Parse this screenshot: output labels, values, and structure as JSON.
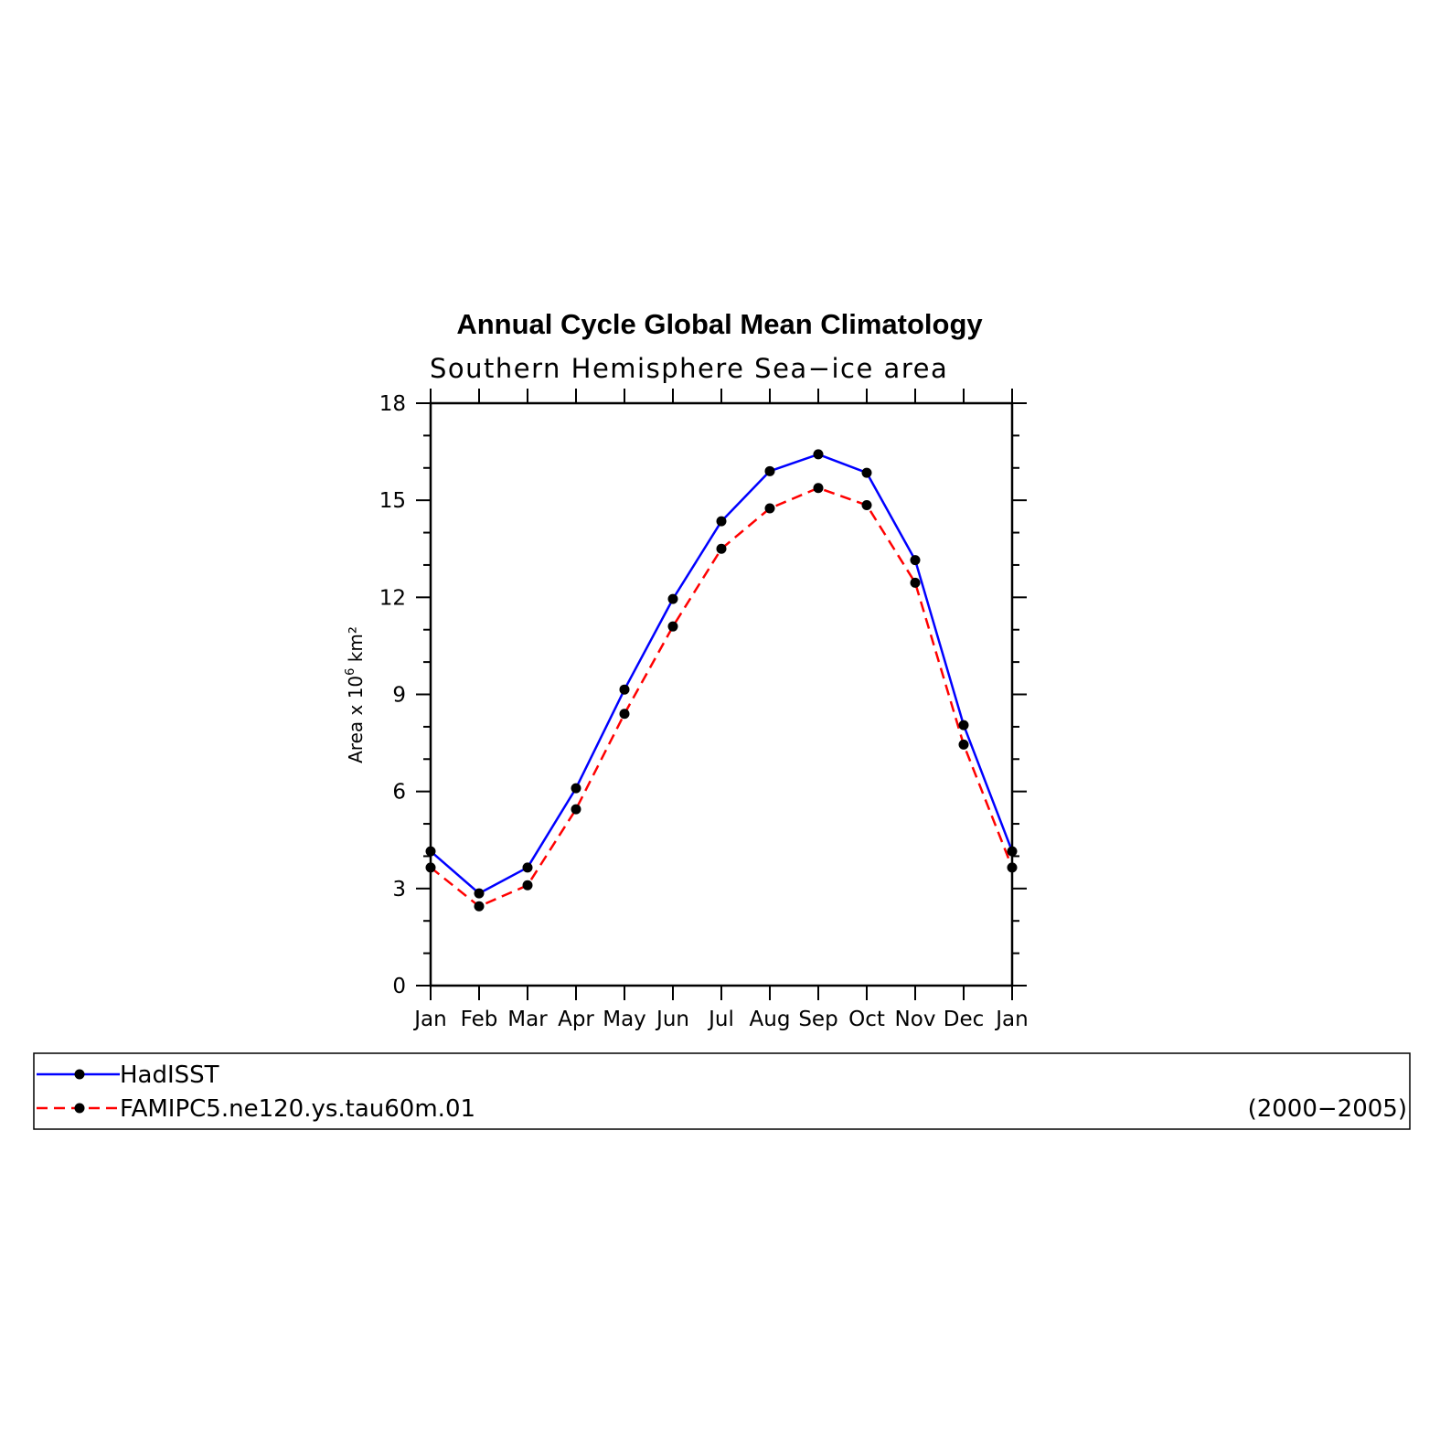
{
  "chart_data": {
    "type": "line",
    "title": "Annual Cycle Global Mean Climatology",
    "subtitle": "Southern Hemisphere Sea−ice area",
    "ylabel": {
      "prefix": "Area x 10",
      "exponent": "6",
      "unit": "km²"
    },
    "categories": [
      "Jan",
      "Feb",
      "Mar",
      "Apr",
      "May",
      "Jun",
      "Jul",
      "Aug",
      "Sep",
      "Oct",
      "Nov",
      "Dec",
      "Jan"
    ],
    "ylim": [
      0,
      18
    ],
    "yticks": [
      0,
      3,
      6,
      9,
      12,
      15,
      18
    ],
    "series": [
      {
        "name": "HadISST",
        "color": "#0000ff",
        "line_style": "solid",
        "marker": "filled-circle",
        "values": [
          4.15,
          2.85,
          3.65,
          6.1,
          9.15,
          11.95,
          14.35,
          15.9,
          16.42,
          15.85,
          13.15,
          8.05,
          4.15
        ]
      },
      {
        "name": "FAMIPC5.ne120.ys.tau60m.01",
        "color": "#ff0000",
        "line_style": "dashed",
        "marker": "filled-circle",
        "values": [
          3.65,
          2.45,
          3.1,
          5.45,
          8.4,
          11.1,
          13.5,
          14.75,
          15.38,
          14.85,
          12.45,
          7.45,
          3.65
        ]
      }
    ],
    "legend": {
      "placement": "bottom",
      "period": "(2000−2005)"
    },
    "grid": false
  }
}
